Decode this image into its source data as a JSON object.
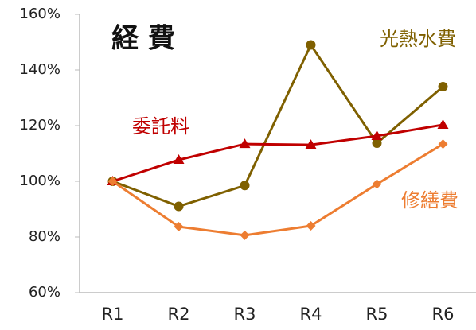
{
  "chart_data": {
    "type": "line",
    "title": "経 費",
    "categories": [
      "R1",
      "R2",
      "R3",
      "R4",
      "R5",
      "R6"
    ],
    "series": [
      {
        "name": "光熱水費",
        "color": "#7f6000",
        "marker": "circle",
        "values": [
          100,
          91,
          98.5,
          149,
          113.7,
          134
        ]
      },
      {
        "name": "委託料",
        "color": "#c00000",
        "marker": "triangle",
        "values": [
          100,
          107.7,
          113.4,
          113.1,
          116.3,
          120.3
        ]
      },
      {
        "name": "修繕費",
        "color": "#ed7d31",
        "marker": "diamond",
        "values": [
          100,
          83.7,
          80.6,
          84,
          99,
          113.4
        ]
      }
    ],
    "ylim": [
      60,
      160
    ],
    "yticks": [
      {
        "value": 60,
        "label": "60%"
      },
      {
        "value": 80,
        "label": "80%"
      },
      {
        "value": 100,
        "label": "100%"
      },
      {
        "value": 120,
        "label": "120%"
      },
      {
        "value": 140,
        "label": "140%"
      },
      {
        "value": 160,
        "label": "160%"
      }
    ],
    "grid": false
  }
}
